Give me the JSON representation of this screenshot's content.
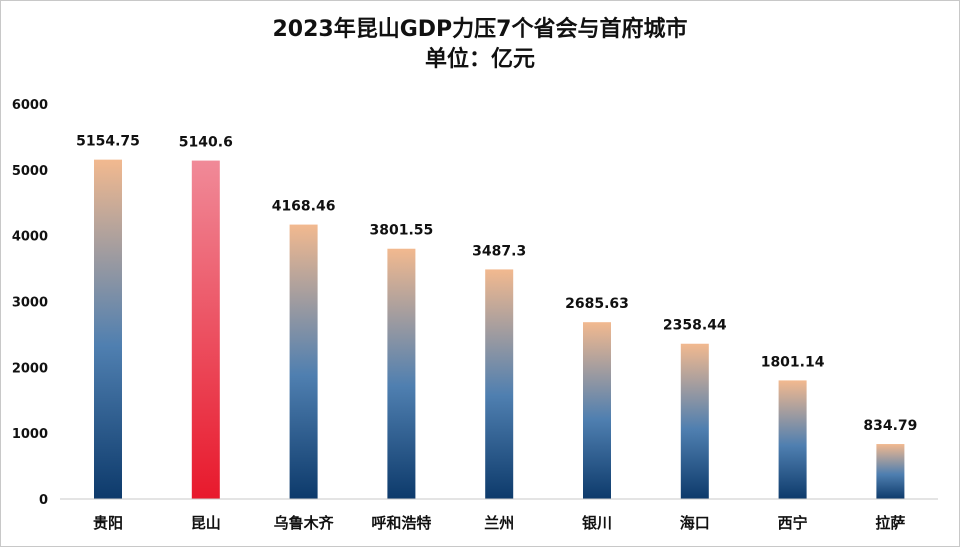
{
  "chart_data": {
    "type": "bar",
    "title": "2023年昆山GDP力压7个省会与首府城市",
    "subtitle": "单位：亿元",
    "categories": [
      "贵阳",
      "昆山",
      "乌鲁木齐",
      "呼和浩特",
      "兰州",
      "银川",
      "海口",
      "西宁",
      "拉萨"
    ],
    "values": [
      5154.75,
      5140.6,
      4168.46,
      3801.55,
      3487.3,
      2685.63,
      2358.44,
      1801.14,
      834.79
    ],
    "value_labels": [
      "5154.75",
      "5140.6",
      "4168.46",
      "3801.55",
      "3487.3",
      "2685.63",
      "2358.44",
      "1801.14",
      "834.79"
    ],
    "highlight_category": "昆山",
    "ylim": [
      0,
      6000
    ],
    "yticks": [
      0,
      1000,
      2000,
      3000,
      4000,
      5000,
      6000
    ],
    "grid": false,
    "legend": "none",
    "colors": {
      "bar_top": "#f2b98f",
      "bar_mid": "#4f7fb0",
      "bar_bottom": "#0d3a6b",
      "highlight_top": "#f08a98",
      "highlight_bottom": "#e8192c",
      "axis": "#c8c8c8",
      "text": "#111111"
    }
  }
}
